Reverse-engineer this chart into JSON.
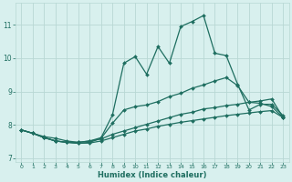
{
  "xlabel": "Humidex (Indice chaleur)",
  "bg_color": "#d8f0ee",
  "grid_color": "#b8d8d4",
  "line_color": "#1e6e60",
  "xlim": [
    -0.5,
    23.5
  ],
  "ylim": [
    6.9,
    11.65
  ],
  "xticks": [
    0,
    1,
    2,
    3,
    4,
    5,
    6,
    7,
    8,
    9,
    10,
    11,
    12,
    13,
    14,
    15,
    16,
    17,
    18,
    19,
    20,
    21,
    22,
    23
  ],
  "yticks": [
    7,
    8,
    9,
    10,
    11
  ],
  "curve1_x": [
    0,
    1,
    2,
    3,
    4,
    5,
    6,
    7,
    8,
    9,
    10,
    11,
    12,
    13,
    14,
    15,
    16,
    17,
    18,
    19,
    20,
    21,
    22,
    23
  ],
  "curve1_y": [
    7.85,
    7.75,
    7.65,
    7.6,
    7.52,
    7.48,
    7.52,
    7.62,
    8.3,
    9.85,
    10.05,
    9.52,
    10.35,
    9.85,
    10.95,
    11.1,
    11.28,
    10.15,
    10.08,
    9.22,
    8.45,
    8.62,
    8.62,
    8.28
  ],
  "curve2_x": [
    0,
    1,
    2,
    3,
    4,
    5,
    6,
    7,
    8,
    9,
    10,
    11,
    12,
    13,
    14,
    15,
    16,
    17,
    18,
    19,
    20,
    21,
    22,
    23
  ],
  "curve2_y": [
    7.85,
    7.75,
    7.62,
    7.52,
    7.48,
    7.45,
    7.48,
    7.6,
    8.05,
    8.45,
    8.55,
    8.6,
    8.7,
    8.85,
    8.95,
    9.1,
    9.2,
    9.32,
    9.42,
    9.18,
    8.68,
    8.65,
    8.55,
    8.22
  ],
  "curve3_x": [
    0,
    1,
    2,
    3,
    4,
    5,
    6,
    7,
    8,
    9,
    10,
    11,
    12,
    13,
    14,
    15,
    16,
    17,
    18,
    19,
    20,
    21,
    22,
    23
  ],
  "curve3_y": [
    7.85,
    7.75,
    7.62,
    7.52,
    7.48,
    7.48,
    7.52,
    7.58,
    7.72,
    7.82,
    7.92,
    8.02,
    8.12,
    8.22,
    8.32,
    8.38,
    8.48,
    8.52,
    8.58,
    8.62,
    8.68,
    8.72,
    8.78,
    8.22
  ],
  "curve4_x": [
    0,
    1,
    2,
    3,
    4,
    5,
    6,
    7,
    8,
    9,
    10,
    11,
    12,
    13,
    14,
    15,
    16,
    17,
    18,
    19,
    20,
    21,
    22,
    23
  ],
  "curve4_y": [
    7.85,
    7.75,
    7.62,
    7.52,
    7.48,
    7.45,
    7.46,
    7.52,
    7.62,
    7.72,
    7.82,
    7.88,
    7.96,
    8.02,
    8.08,
    8.13,
    8.18,
    8.23,
    8.28,
    8.32,
    8.36,
    8.4,
    8.43,
    8.22
  ]
}
